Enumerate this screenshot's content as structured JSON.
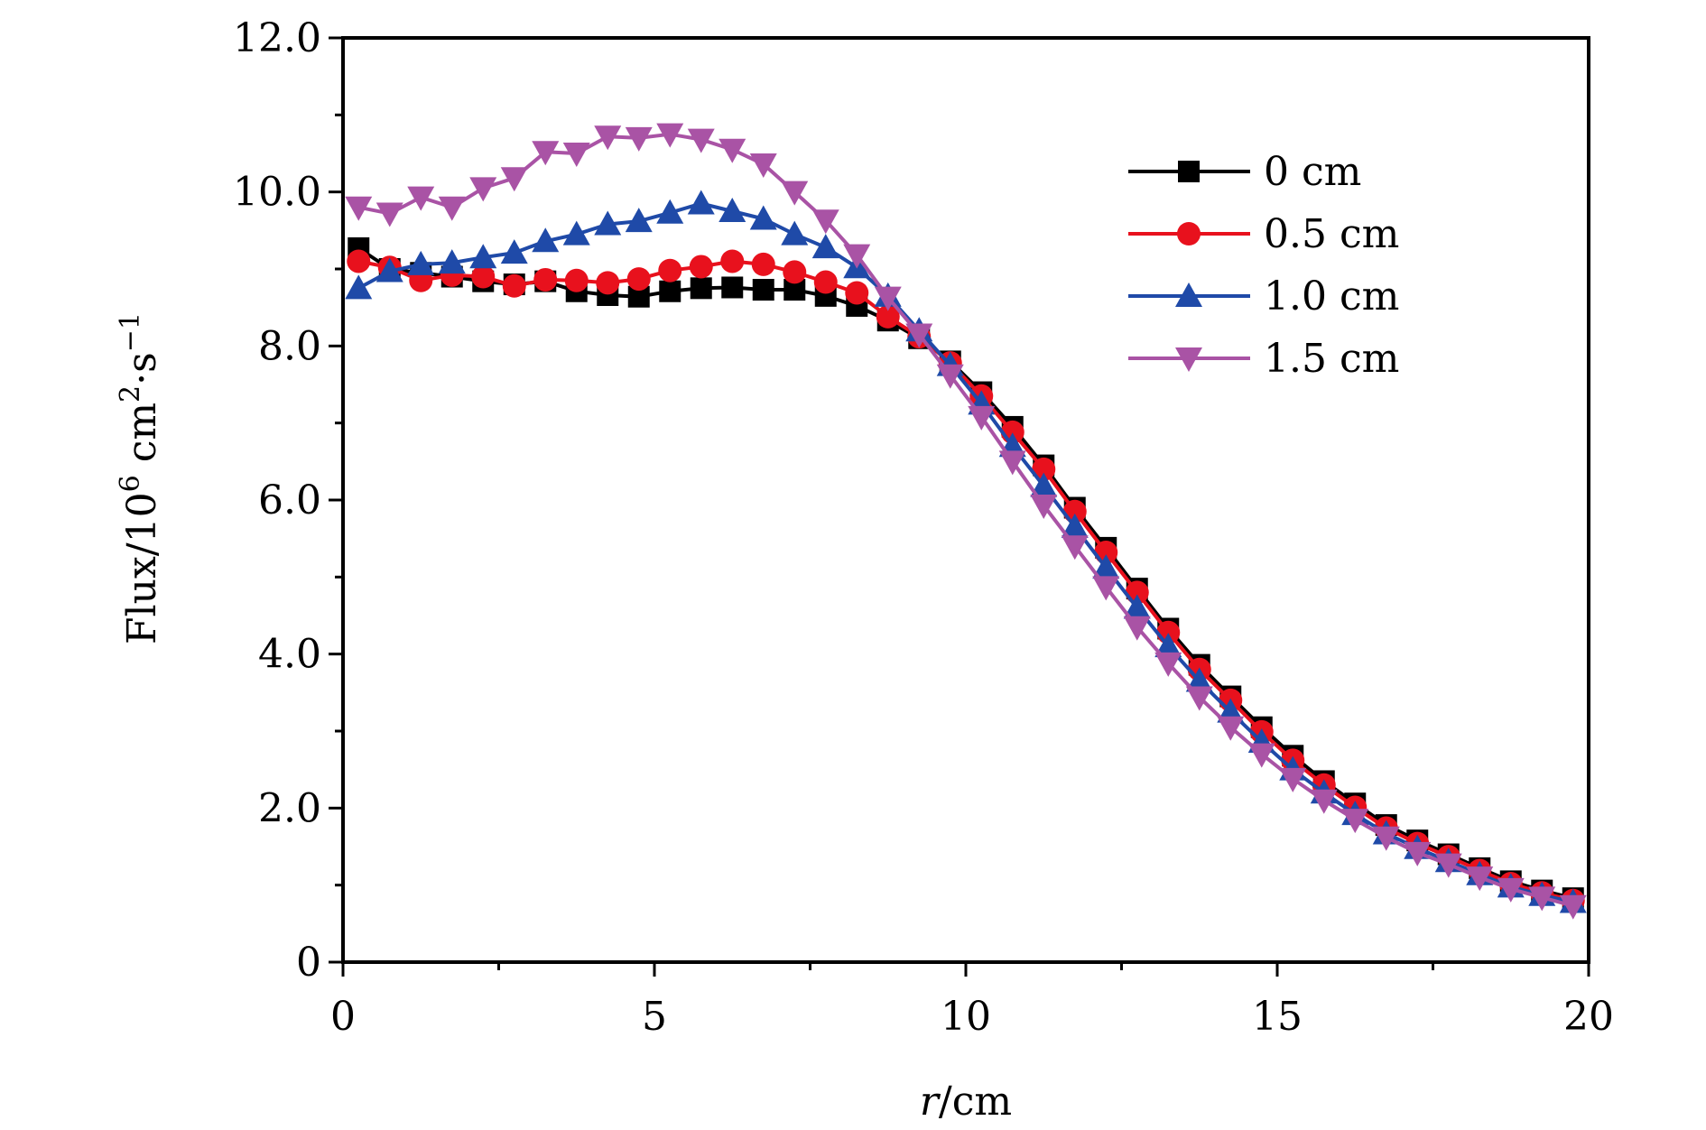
{
  "chart_data": {
    "type": "line",
    "xlabel": {
      "var": "r",
      "unit": "/cm"
    },
    "ylabel": {
      "base": "Flux/10",
      "exp": "6",
      "rest": " cm",
      "exp2": "2",
      "rest2": "·s",
      "exp3": "−1"
    },
    "xlim": [
      0,
      20
    ],
    "ylim": [
      0,
      12
    ],
    "x_ticks": [
      0,
      5,
      10,
      15,
      20
    ],
    "x_tick_labels": [
      "0",
      "5",
      "10",
      "15",
      "20"
    ],
    "y_ticks": [
      0,
      2,
      4,
      6,
      8,
      10,
      12
    ],
    "y_tick_labels": [
      "0",
      "2.0",
      "4.0",
      "6.0",
      "8.0",
      "10.0",
      "12.0"
    ],
    "grid": false,
    "legend_position": "top-right",
    "x": [
      0.25,
      0.75,
      1.25,
      1.75,
      2.25,
      2.75,
      3.25,
      3.75,
      4.25,
      4.75,
      5.25,
      5.75,
      6.25,
      6.75,
      7.25,
      7.75,
      8.25,
      8.75,
      9.25,
      9.75,
      10.25,
      10.75,
      11.25,
      11.75,
      12.25,
      12.75,
      13.25,
      13.75,
      14.25,
      14.75,
      15.25,
      15.75,
      16.25,
      16.75,
      17.25,
      17.75,
      18.25,
      18.75,
      19.25,
      19.75
    ],
    "series": [
      {
        "name": "0 cm",
        "color": "#000000",
        "marker": "square",
        "values": [
          9.27,
          9.0,
          8.95,
          8.9,
          8.84,
          8.8,
          8.84,
          8.71,
          8.66,
          8.64,
          8.71,
          8.75,
          8.76,
          8.73,
          8.73,
          8.65,
          8.52,
          8.33,
          8.1,
          7.8,
          7.4,
          6.95,
          6.45,
          5.9,
          5.38,
          4.85,
          4.33,
          3.86,
          3.45,
          3.05,
          2.68,
          2.35,
          2.06,
          1.78,
          1.58,
          1.4,
          1.22,
          1.05,
          0.93,
          0.83
        ]
      },
      {
        "name": "0.5 cm",
        "color": "#e8111d",
        "marker": "circle",
        "values": [
          9.1,
          9.02,
          8.85,
          8.92,
          8.9,
          8.78,
          8.86,
          8.85,
          8.82,
          8.87,
          8.98,
          9.03,
          9.1,
          9.06,
          8.96,
          8.83,
          8.69,
          8.38,
          8.12,
          7.78,
          7.35,
          6.88,
          6.4,
          5.85,
          5.32,
          4.8,
          4.28,
          3.8,
          3.4,
          2.99,
          2.62,
          2.3,
          2.01,
          1.74,
          1.54,
          1.37,
          1.19,
          1.02,
          0.9,
          0.8
        ]
      },
      {
        "name": "1.0 cm",
        "color": "#1f4aa8",
        "marker": "triangle-up",
        "values": [
          8.75,
          8.97,
          9.06,
          9.08,
          9.15,
          9.21,
          9.36,
          9.45,
          9.58,
          9.62,
          9.73,
          9.85,
          9.75,
          9.65,
          9.45,
          9.28,
          9.02,
          8.65,
          8.2,
          7.75,
          7.25,
          6.7,
          6.18,
          5.65,
          5.12,
          4.6,
          4.1,
          3.65,
          3.25,
          2.86,
          2.5,
          2.2,
          1.92,
          1.67,
          1.48,
          1.31,
          1.14,
          0.98,
          0.87,
          0.78
        ]
      },
      {
        "name": "1.5 cm",
        "color": "#a953a5",
        "marker": "triangle-down",
        "values": [
          9.8,
          9.72,
          9.93,
          9.8,
          10.05,
          10.18,
          10.52,
          10.5,
          10.72,
          10.7,
          10.75,
          10.68,
          10.55,
          10.36,
          10.0,
          9.63,
          9.18,
          8.63,
          8.15,
          7.62,
          7.08,
          6.5,
          5.93,
          5.4,
          4.87,
          4.35,
          3.88,
          3.44,
          3.05,
          2.7,
          2.38,
          2.1,
          1.85,
          1.62,
          1.42,
          1.27,
          1.1,
          0.95,
          0.84,
          0.73
        ]
      }
    ]
  }
}
